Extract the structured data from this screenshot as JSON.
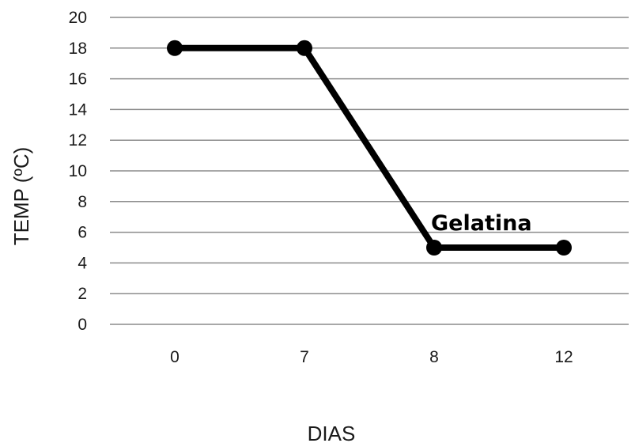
{
  "chart_data": {
    "type": "line",
    "categories": [
      "0",
      "7",
      "8",
      "12"
    ],
    "series": [
      {
        "values": [
          18,
          18,
          5,
          5
        ]
      }
    ],
    "xlabel": "DIAS",
    "ylabel": "TEMP (ºC)",
    "ylim": [
      0,
      20
    ],
    "yticks": [
      "0",
      "2",
      "4",
      "6",
      "8",
      "10",
      "12",
      "14",
      "16",
      "18",
      "20"
    ],
    "grid": "horizontal",
    "annotations": [
      {
        "text": "Gelatina",
        "category": "8",
        "value": 5
      }
    ],
    "colors": {
      "line": "#000000",
      "grid": "#8c8c8c",
      "text": "#1a1a1a"
    }
  }
}
